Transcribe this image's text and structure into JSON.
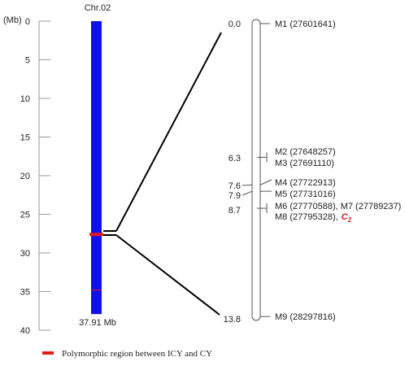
{
  "axis": {
    "unit_label": "(Mb)",
    "ticks": [
      0,
      5,
      10,
      15,
      20,
      25,
      30,
      35,
      40
    ]
  },
  "chromosome": {
    "name": "Chr.02",
    "length_mb": 37.91,
    "length_label": "37.91 Mb",
    "color": "#1010e8",
    "polymorphic_region_mb": 27.6,
    "minor_mark_mb": 34.8
  },
  "map": {
    "markers": [
      {
        "pos_cm": 0.0,
        "pos_label": "0.0",
        "label": "M1 (27601641)"
      },
      {
        "pos_cm": 6.3,
        "pos_label": "6.3",
        "label": "M2 (27648257)"
      },
      {
        "pos_cm": 6.3,
        "pos_label": "",
        "label": "M3 (27691110)"
      },
      {
        "pos_cm": 7.6,
        "pos_label": "7.6",
        "label": "M4 (27722913)"
      },
      {
        "pos_cm": 7.9,
        "pos_label": "7.9",
        "label": "M5 (27731016)"
      },
      {
        "pos_cm": 8.7,
        "pos_label": "8.7",
        "label": "M6 (27770588), M7 (27789237)"
      },
      {
        "pos_cm": 8.7,
        "pos_label": "",
        "label": "M8 (27795328),",
        "gene": "C",
        "gene_sub": "2"
      },
      {
        "pos_cm": 13.8,
        "pos_label": "13.8",
        "label": "M9 (28297816)"
      }
    ],
    "gene_color": "#e31a1c"
  },
  "legend": {
    "text": "Polymorphic region between ICY and CY",
    "color": "#e31a1c"
  }
}
